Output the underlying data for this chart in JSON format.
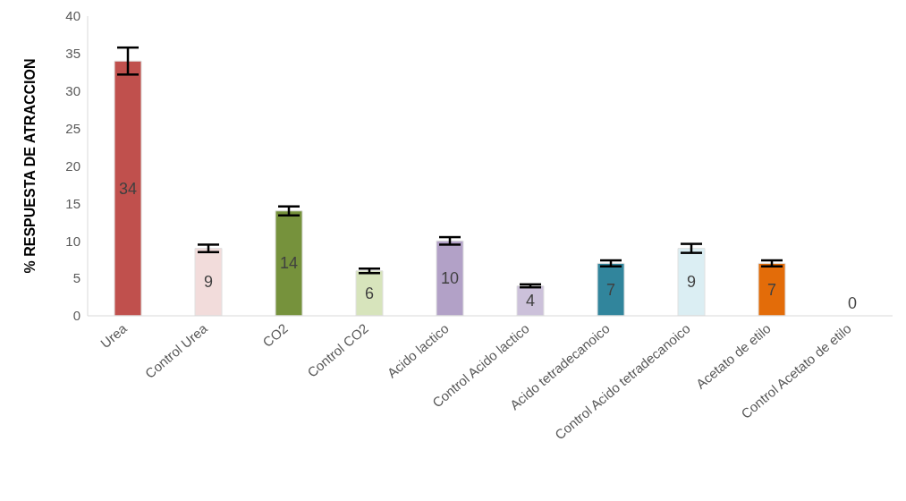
{
  "chart_data": {
    "type": "bar",
    "ylabel": "% RESPUESTA DE ATRACCION",
    "categories": [
      "Urea",
      "Control Urea",
      "CO2",
      "Control CO2",
      "Acido lactico",
      "Control Acido lactico",
      "Acido tetradecanoico",
      "Control Acido tetradecanoico",
      "Acetato de etilo",
      "Control Acetato de etilo"
    ],
    "values": [
      34,
      9,
      14,
      6,
      10,
      4,
      7,
      9,
      7,
      0
    ],
    "colors": [
      "#c0504d",
      "#f2dcdb",
      "#76923c",
      "#d7e4bc",
      "#b2a1c7",
      "#ccc1da",
      "#31859c",
      "#dbeef3",
      "#e36c09",
      "#ffffff"
    ],
    "errors": [
      1.8,
      0.5,
      0.6,
      0.3,
      0.5,
      0.2,
      0.4,
      0.6,
      0.4,
      null
    ],
    "data_labels": true,
    "ylim": [
      0,
      40
    ],
    "yticks": [
      0,
      5,
      10,
      15,
      20,
      25,
      30,
      35,
      40
    ]
  }
}
